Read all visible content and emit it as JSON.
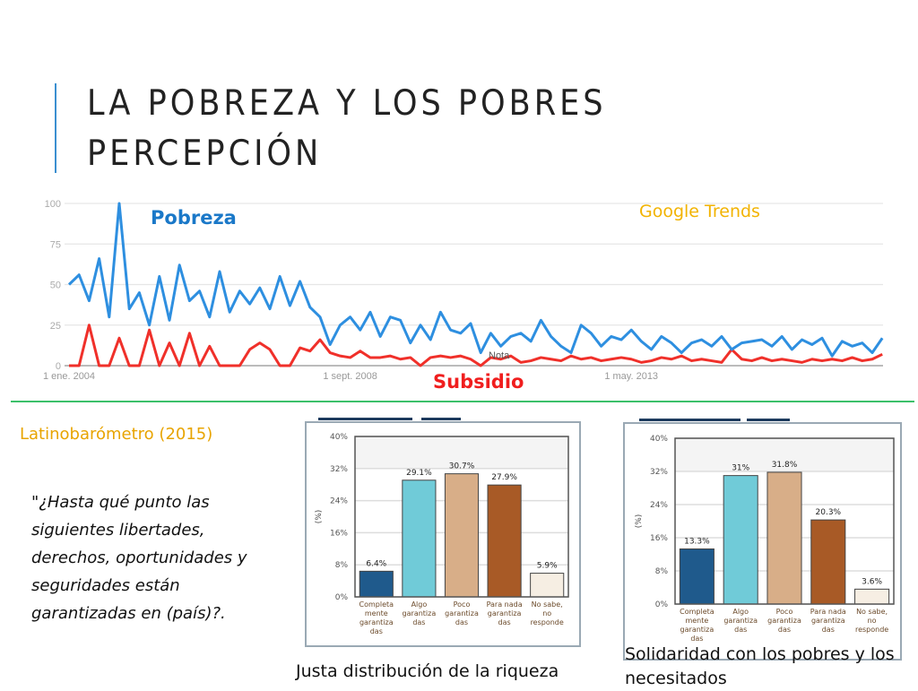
{
  "slide": {
    "title_line1": "LA POBREZA Y LOS POBRES",
    "title_line2": "PERCEPCIÓN",
    "accent_color": "#3b8fd0",
    "divider_color": "#3cc06a",
    "source_label": "Latinobarómetro (2015)",
    "quote": "\"¿Hasta qué punto las siguientes libertades, derechos, oportunidades y seguridades están garantizadas en (país)?.",
    "caption_left": "Justa distribución de la riqueza",
    "caption_right": "Solidaridad con los pobres y los necesitados"
  },
  "chart_data": [
    {
      "type": "line",
      "source_label": "Google Trends",
      "ylim": [
        0,
        100
      ],
      "yticks": [
        "0",
        "25",
        "50",
        "75",
        "100"
      ],
      "xtick_labels": [
        "1 ene. 2004",
        "1 sept. 2008",
        "1 may. 2013"
      ],
      "xtick_dates": [
        "2004-01",
        "2008-09",
        "2013-05"
      ],
      "annotation": "Nota",
      "grid": true,
      "x": [
        "2004-01",
        "2004-03",
        "2004-05",
        "2004-07",
        "2004-09",
        "2004-11",
        "2005-01",
        "2005-03",
        "2005-05",
        "2005-07",
        "2005-09",
        "2005-11",
        "2006-01",
        "2006-03",
        "2006-05",
        "2006-07",
        "2006-09",
        "2006-11",
        "2007-01",
        "2007-03",
        "2007-05",
        "2007-07",
        "2007-09",
        "2007-11",
        "2008-01",
        "2008-03",
        "2008-05",
        "2008-07",
        "2008-09",
        "2008-11",
        "2009-01",
        "2009-03",
        "2009-05",
        "2009-07",
        "2009-09",
        "2009-11",
        "2010-01",
        "2010-03",
        "2010-05",
        "2010-07",
        "2010-09",
        "2010-11",
        "2011-01",
        "2011-03",
        "2011-05",
        "2011-07",
        "2011-09",
        "2011-11",
        "2012-01",
        "2012-03",
        "2012-05",
        "2012-07",
        "2012-09",
        "2012-11",
        "2013-01",
        "2013-03",
        "2013-05",
        "2013-07",
        "2013-09",
        "2013-11",
        "2014-01",
        "2014-03",
        "2014-05",
        "2014-07",
        "2014-09",
        "2014-11",
        "2015-01",
        "2015-03",
        "2015-05",
        "2015-07",
        "2015-09",
        "2015-11",
        "2016-01",
        "2016-03",
        "2016-05",
        "2016-07",
        "2016-09",
        "2016-11",
        "2017-01",
        "2017-03",
        "2017-05",
        "2017-07"
      ],
      "series": [
        {
          "name": "Pobreza",
          "color": "#2e8fe0",
          "values": [
            50,
            56,
            40,
            66,
            30,
            100,
            35,
            45,
            25,
            55,
            28,
            62,
            40,
            46,
            30,
            58,
            33,
            46,
            38,
            48,
            35,
            55,
            37,
            52,
            36,
            30,
            13,
            25,
            30,
            22,
            33,
            18,
            30,
            28,
            14,
            25,
            16,
            33,
            22,
            20,
            26,
            8,
            20,
            12,
            18,
            20,
            15,
            28,
            18,
            12,
            8,
            25,
            20,
            12,
            18,
            16,
            22,
            15,
            10,
            18,
            14,
            8,
            14,
            16,
            12,
            18,
            10,
            14,
            15,
            16,
            12,
            18,
            10,
            16,
            13,
            17,
            6,
            15,
            12,
            14,
            8,
            17
          ]
        },
        {
          "name": "Subsidio",
          "color": "#f0302a",
          "values": [
            0,
            0,
            25,
            0,
            0,
            17,
            0,
            0,
            22,
            0,
            14,
            0,
            20,
            0,
            12,
            0,
            0,
            0,
            10,
            14,
            10,
            0,
            0,
            11,
            9,
            16,
            8,
            6,
            5,
            9,
            5,
            5,
            6,
            4,
            5,
            0,
            5,
            6,
            5,
            6,
            4,
            0,
            5,
            4,
            6,
            2,
            3,
            5,
            4,
            3,
            6,
            4,
            5,
            3,
            4,
            5,
            4,
            2,
            3,
            5,
            4,
            6,
            3,
            4,
            3,
            2,
            10,
            4,
            3,
            5,
            3,
            4,
            3,
            2,
            4,
            3,
            4,
            3,
            5,
            3,
            4,
            7
          ]
        }
      ]
    },
    {
      "type": "bar",
      "ylabel": "(%)",
      "ylim": [
        0,
        40
      ],
      "yticks": [
        "0%",
        "8%",
        "16%",
        "24%",
        "32%",
        "40%"
      ],
      "categories": [
        [
          "Completa",
          "mente",
          "garantiza",
          "das"
        ],
        [
          "Algo",
          "garantiza",
          "das"
        ],
        [
          "Poco",
          "garantiza",
          "das"
        ],
        [
          "Para nada",
          "garantiza",
          "das"
        ],
        [
          "No sabe,",
          "no",
          "responde"
        ]
      ],
      "values": [
        6.4,
        29.1,
        30.7,
        27.9,
        5.9
      ],
      "labels": [
        "6.4%",
        "29.1%",
        "30.7%",
        "27.9%",
        "5.9%"
      ],
      "colors": [
        "#1f5a8c",
        "#70cbd8",
        "#d8ae88",
        "#a85a26",
        "#f6eee3"
      ],
      "caption": "Justa distribución de la riqueza"
    },
    {
      "type": "bar",
      "ylabel": "(%)",
      "ylim": [
        0,
        40
      ],
      "yticks": [
        "0%",
        "8%",
        "16%",
        "24%",
        "32%",
        "40%"
      ],
      "categories": [
        [
          "Completa",
          "mente",
          "garantiza",
          "das"
        ],
        [
          "Algo",
          "garantiza",
          "das"
        ],
        [
          "Poco",
          "garantiza",
          "das"
        ],
        [
          "Para nada",
          "garantiza",
          "das"
        ],
        [
          "No sabe,",
          "no",
          "responde"
        ]
      ],
      "values": [
        13.3,
        31,
        31.8,
        20.3,
        3.6
      ],
      "labels": [
        "13.3%",
        "31%",
        "31.8%",
        "20.3%",
        "3.6%"
      ],
      "colors": [
        "#1f5a8c",
        "#70cbd8",
        "#d8ae88",
        "#a85a26",
        "#f6eee3"
      ],
      "caption": "Solidaridad con los pobres y los necesitados"
    }
  ]
}
